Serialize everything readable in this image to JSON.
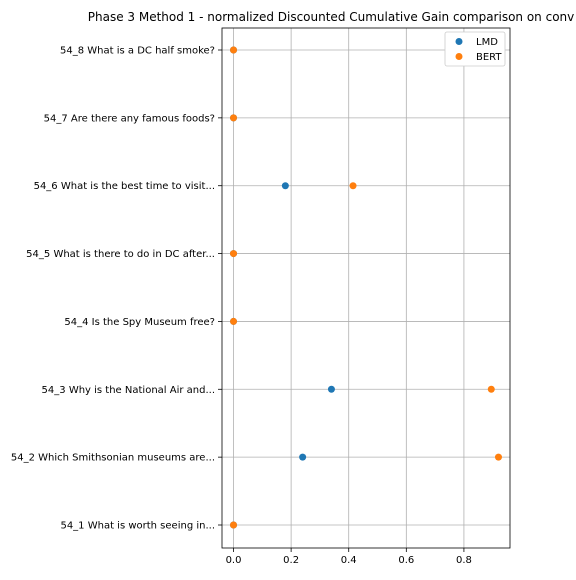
{
  "chart_data": {
    "type": "scatter",
    "title": "Phase 3 Method 1 - normalized Discounted Cumulative Gain comparison on conv",
    "xlabel": "",
    "ylabel": "",
    "xlim": [
      -0.04,
      0.96
    ],
    "x_ticks": [
      "0.0",
      "0.2",
      "0.4",
      "0.6",
      "0.8"
    ],
    "x_tick_values": [
      0.0,
      0.2,
      0.4,
      0.6,
      0.8
    ],
    "grid": true,
    "legend_position": "top-right",
    "categories": [
      "54_1 What is worth seeing in...",
      "54_2 Which Smithsonian museums are...",
      "54_3 Why is the National Air and...",
      "54_4 Is the Spy Museum free?",
      "54_5 What is there to do in DC after...",
      "54_6 What is the best time to visit...",
      "54_7 Are there any famous foods?",
      "54_8 What is a DC half smoke?"
    ],
    "series": [
      {
        "name": "LMD",
        "color": "#1f77b4",
        "values": [
          0.0,
          0.24,
          0.34,
          0.0,
          0.0,
          0.18,
          0.0,
          0.0
        ]
      },
      {
        "name": "BERT",
        "color": "#ff7f0e",
        "values": [
          0.0,
          0.92,
          0.895,
          0.0,
          0.0,
          0.415,
          0.0,
          0.0
        ]
      }
    ]
  }
}
